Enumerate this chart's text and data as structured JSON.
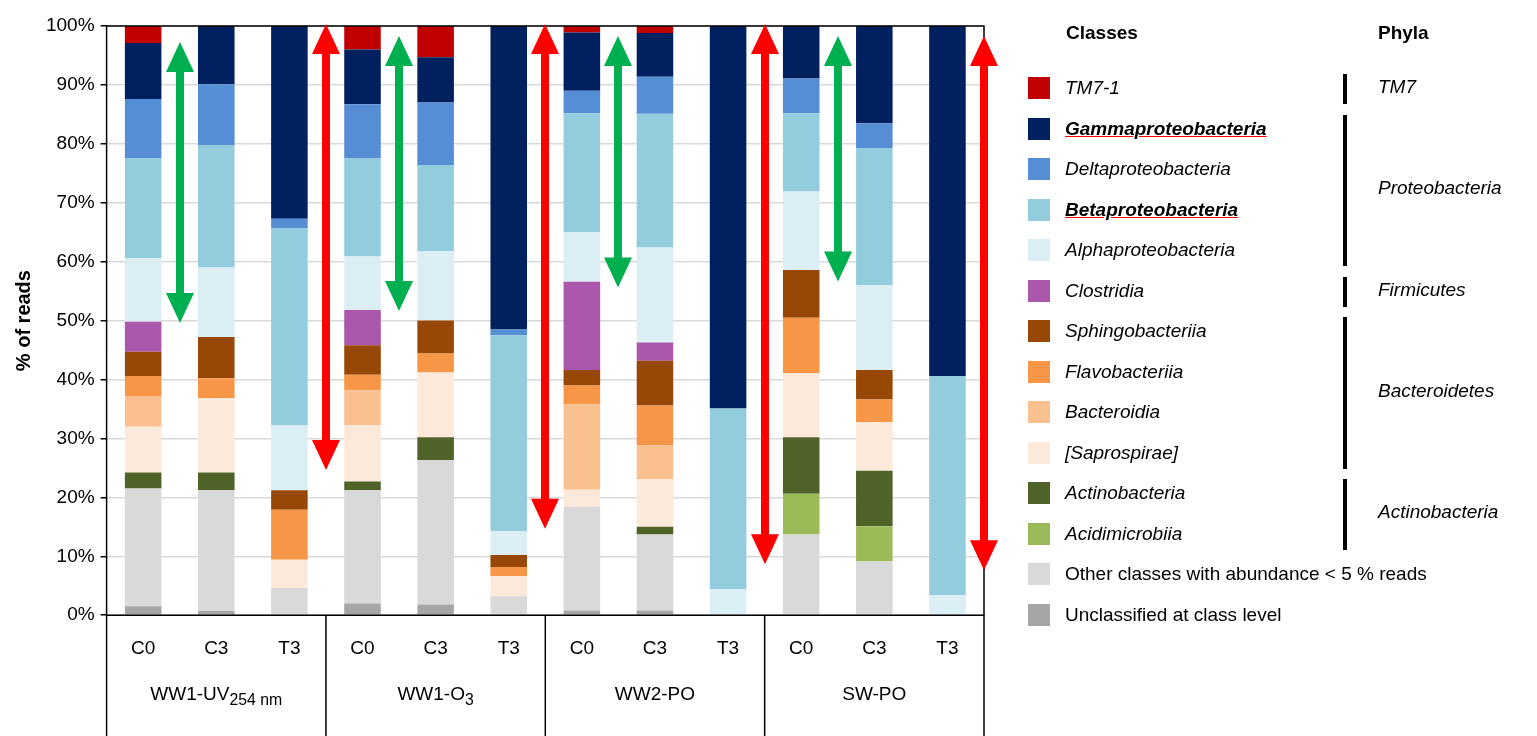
{
  "chart_data": {
    "type": "bar",
    "stacked": true,
    "ylabel": "% of reads",
    "legend_title": "Classes",
    "legend": "right",
    "grid": "y",
    "categories": [
      "C0",
      "C3",
      "T3",
      "C0",
      "C3",
      "T3",
      "C0",
      "C3",
      "T3",
      "C0",
      "C3",
      "T3"
    ],
    "ylim": [
      0,
      100
    ],
    "yticks": [
      {
        "value": 0,
        "label": "0%"
      },
      {
        "value": 10,
        "label": "10%"
      },
      {
        "value": 20,
        "label": "20%"
      },
      {
        "value": 30,
        "label": "30%"
      },
      {
        "value": 40,
        "label": "40%"
      },
      {
        "value": 50,
        "label": "50%"
      },
      {
        "value": 60,
        "label": "60%"
      },
      {
        "value": 70,
        "label": "70%"
      },
      {
        "value": 80,
        "label": "80%"
      },
      {
        "value": 90,
        "label": "90%"
      },
      {
        "value": 100,
        "label": "100%"
      }
    ],
    "annotations": [
      "WW1-UV$_{254 nm}$",
      "WW1-O$_{3}$",
      "WW2-PO",
      "SW-PO",
      "Phyla",
      "TM7",
      "Proteobacteria",
      "Firmicutes",
      "Bacteroidetes",
      "Actinobacteria"
    ],
    "series": [
      {
        "name": "Unclassified at class level",
        "color": "#a6a6a6",
        "values": [
          1.5,
          0.7,
          0,
          2,
          1.8,
          0,
          0.8,
          0.8,
          0,
          0,
          0,
          0
        ]
      },
      {
        "name": "Other classes with abundance < 5 % reads",
        "color": "#d9d9d9",
        "values": [
          20,
          20.5,
          4.6,
          19.2,
          24.5,
          3.2,
          17.6,
          12.9,
          null,
          13.7,
          9.1,
          0
        ]
      },
      {
        "name": "Acidimicrobiia",
        "color": "#9bbb59",
        "values": [
          0,
          0,
          0,
          0,
          0,
          0,
          0,
          0,
          0,
          6.9,
          6,
          0
        ]
      },
      {
        "name": "Actinobacteria",
        "color": "#4f6228",
        "values": [
          2.7,
          3,
          0,
          1.5,
          3.9,
          0,
          0,
          1.3,
          0,
          9.6,
          9.4,
          0
        ]
      },
      {
        "name": "[Saprospirae]",
        "color": "#fde9d9",
        "values": [
          7.8,
          12.6,
          4.8,
          9.6,
          11,
          3.4,
          2.9,
          8.1,
          0,
          10.9,
          8.3,
          0
        ]
      },
      {
        "name": "Bacteroidia",
        "color": "#fac090",
        "values": [
          5.2,
          0,
          0,
          5.9,
          0,
          0,
          14.5,
          5.7,
          0,
          0,
          0,
          0
        ]
      },
      {
        "name": "Flavobacteriia",
        "color": "#f79646",
        "values": [
          3.4,
          3.4,
          8.5,
          2.6,
          3.2,
          1.6,
          3.2,
          6.8,
          0,
          9.4,
          3.8,
          0
        ]
      },
      {
        "name": "Sphingobacteriia",
        "color": "#974806",
        "values": [
          4.1,
          7,
          3.3,
          5,
          5.6,
          2,
          2.6,
          7.6,
          0,
          8.1,
          5,
          0
        ]
      },
      {
        "name": "Clostridia",
        "color": "#ab57ab",
        "values": [
          5.1,
          0,
          0,
          6,
          0,
          0,
          15,
          3.1,
          0,
          0,
          0,
          0
        ]
      },
      {
        "name": "Alphaproteobacteria",
        "color": "#dbeef4",
        "values": [
          10.8,
          11.8,
          11,
          9.1,
          11.8,
          4.1,
          8.4,
          16.1,
          4.4,
          13.3,
          14.4,
          3.4
        ]
      },
      {
        "name": "Betaproteobacteria",
        "color": "#93cddd",
        "values": [
          17,
          20.8,
          33.5,
          16.6,
          14.6,
          33.2,
          20.2,
          22.7,
          30.7,
          13.3,
          23.3,
          37.2
        ]
      },
      {
        "name": "Deltaproteobacteria",
        "color": "#558ed5",
        "values": [
          10,
          10.3,
          1.6,
          9.2,
          10.6,
          1,
          3.8,
          6.3,
          0,
          5.9,
          4.2,
          0
        ]
      },
      {
        "name": "Gammaproteobacteria",
        "color": "#002060",
        "values": [
          9.5,
          9.9,
          32.7,
          9.3,
          7.7,
          51.5,
          9.9,
          7.4,
          64.9,
          8.9,
          16.5,
          59.4
        ]
      },
      {
        "name": "TM7-1",
        "color": "#c00000",
        "values": [
          2.9,
          0,
          0,
          4,
          5.3,
          0,
          1.1,
          1.2,
          0,
          0,
          0,
          0
        ]
      }
    ]
  }
}
